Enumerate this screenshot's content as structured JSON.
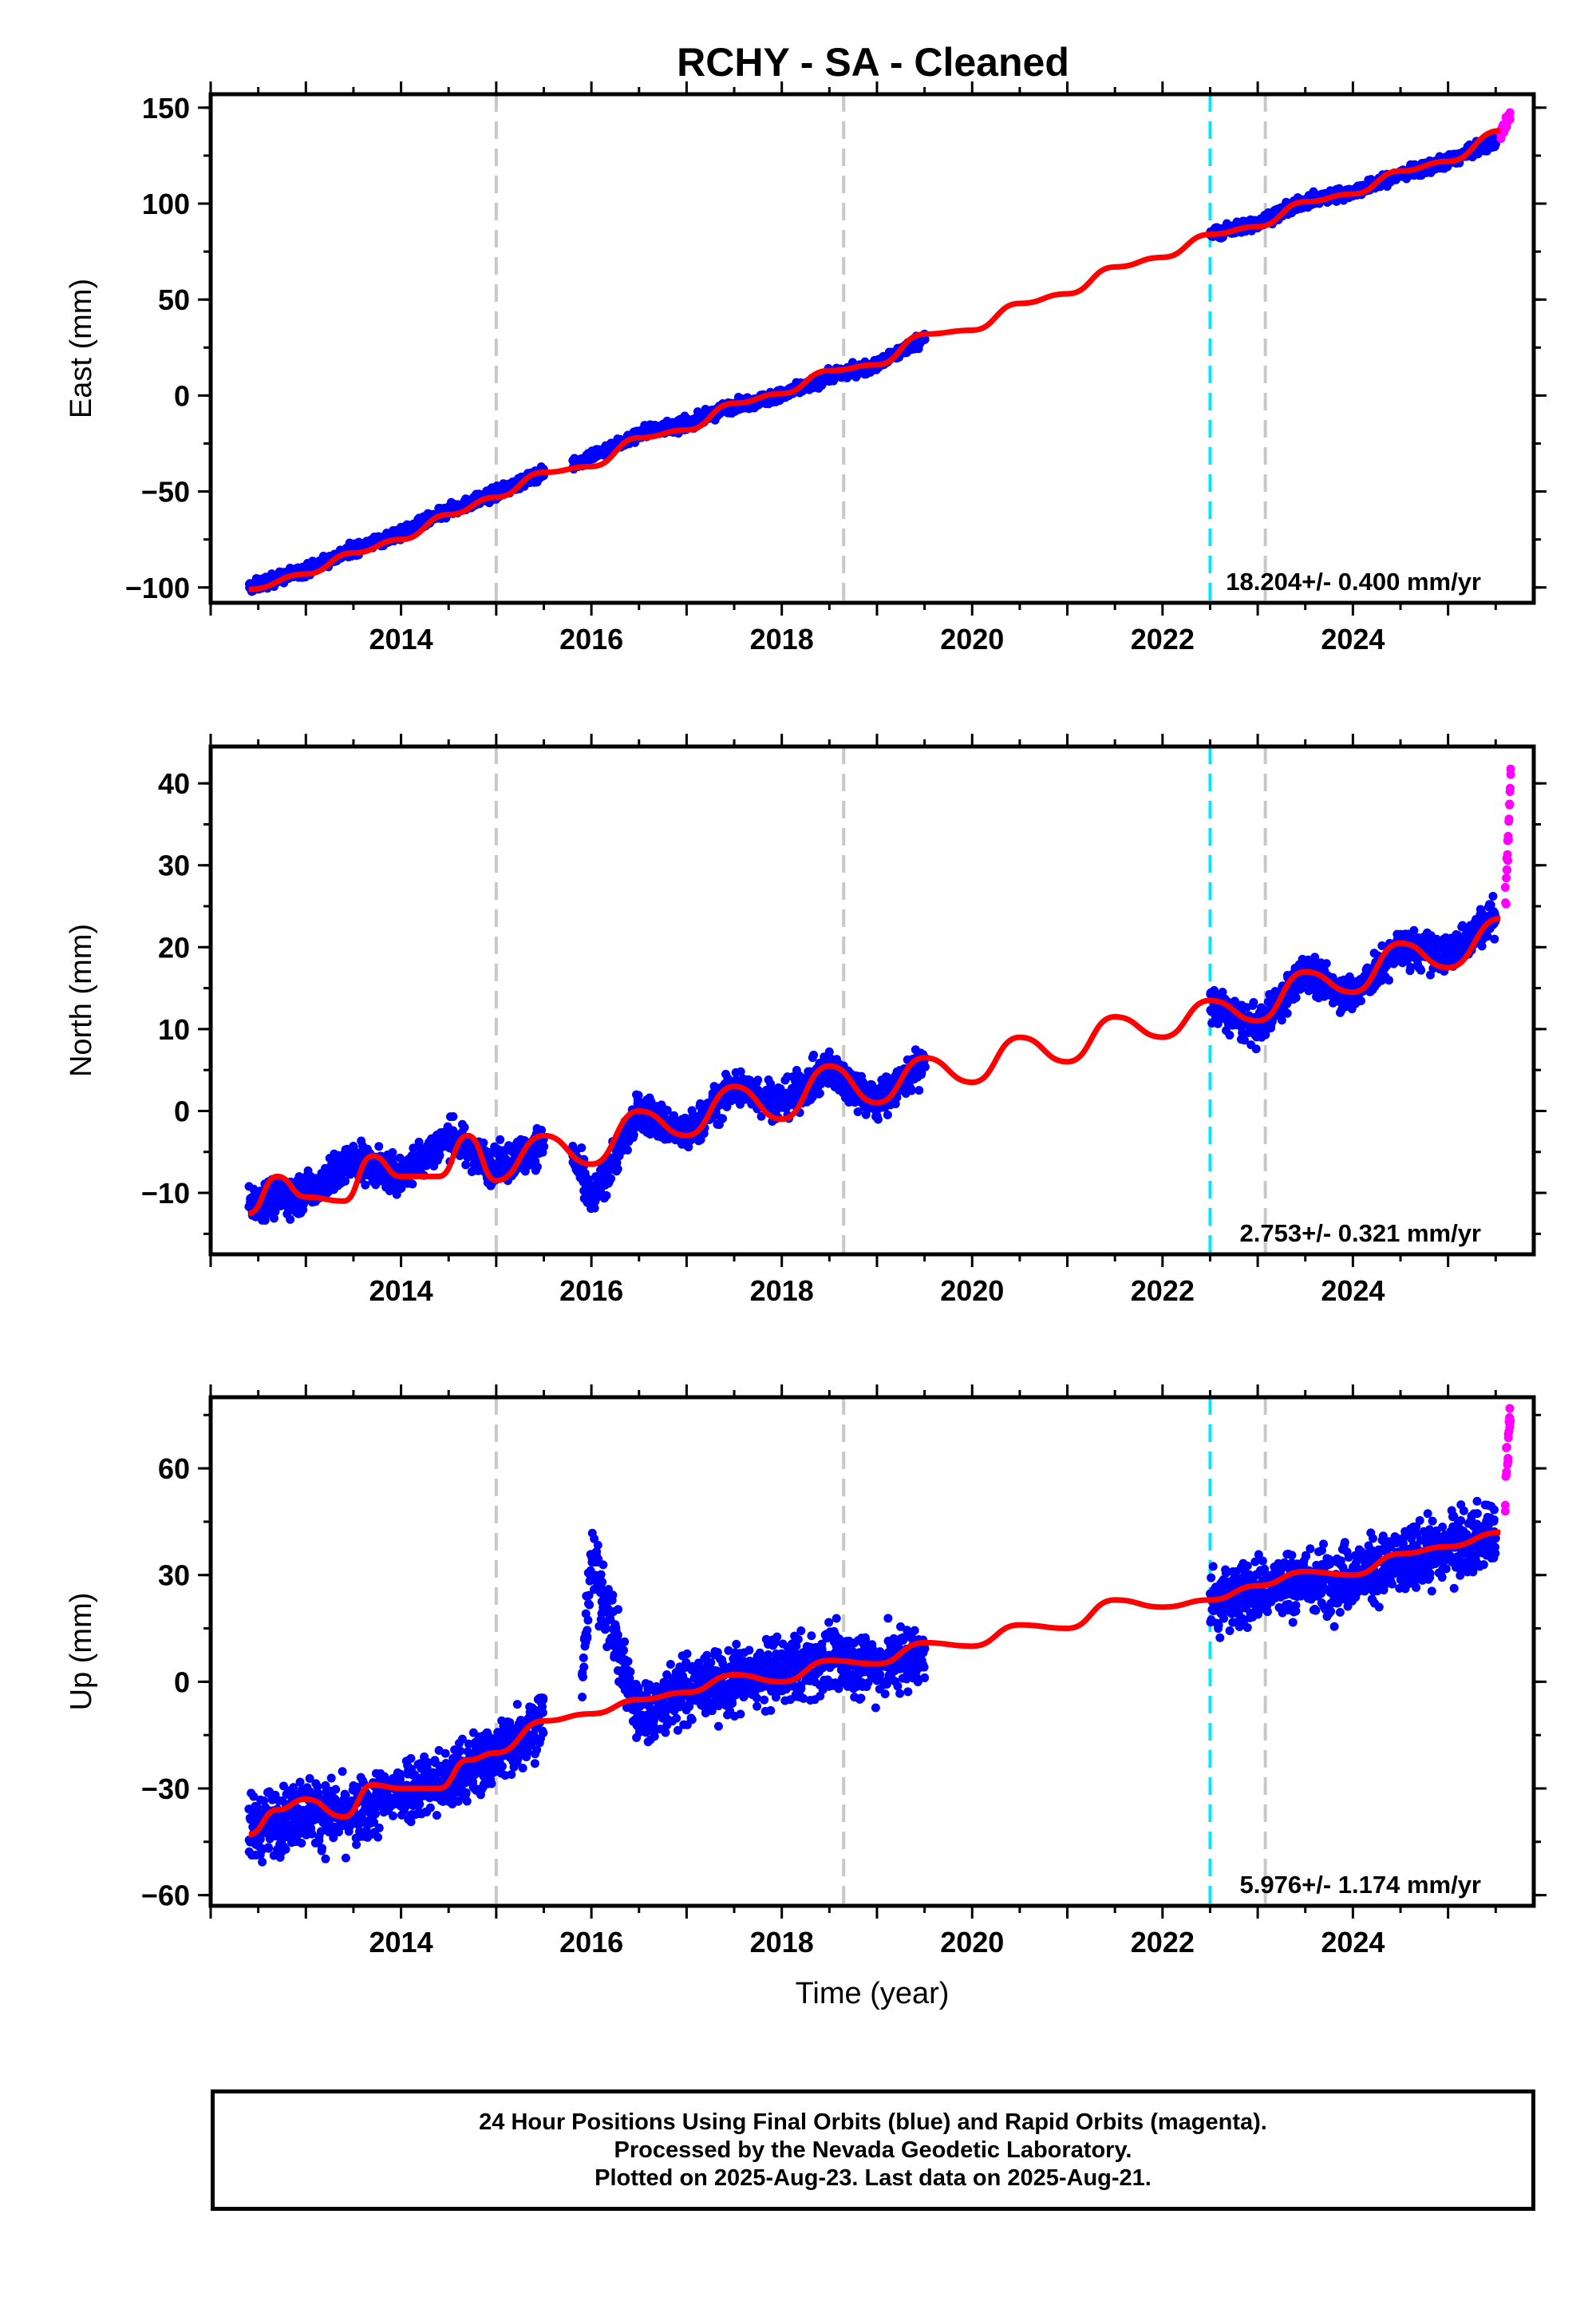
{
  "figure": {
    "title": "RCHY  - SA - Cleaned"
  },
  "chart_data": [
    {
      "type": "scatter",
      "panel": "east",
      "ylabel": "East (mm)",
      "xlabel": "",
      "xlim": [
        2012.0,
        2025.9
      ],
      "ylim": [
        -108,
        157
      ],
      "xticks": [
        2014,
        2016,
        2018,
        2020,
        2022,
        2024
      ],
      "yticks": [
        -100,
        -50,
        0,
        50,
        100,
        150
      ],
      "rate_label": "18.204+/- 0.400 mm/yr",
      "grid": false,
      "series": [
        {
          "role": "final orbits",
          "color": "#0000ff",
          "segments": [
            {
              "x": [
                2012.4,
                2013.0,
                2013.5,
                2014.0,
                2014.5,
                2015.0,
                2015.5
              ],
              "y": [
                -100,
                -91,
                -80,
                -72,
                -60,
                -51,
                -40
              ]
            },
            {
              "x": [
                2015.8,
                2016.3,
                2016.6,
                2017.0,
                2017.5,
                2018.0,
                2018.5,
                2019.0,
                2019.5
              ],
              "y": [
                -36,
                -25,
                -18,
                -15,
                -5,
                0,
                10,
                16,
                30
              ]
            },
            {
              "x": [
                2022.5,
                2023.0,
                2023.5,
                2024.0,
                2024.5,
                2025.0,
                2025.5
              ],
              "y": [
                84,
                90,
                101,
                106,
                115,
                122,
                132
              ]
            }
          ]
        },
        {
          "role": "rapid orbits",
          "color": "#ff00ff",
          "segments": [
            {
              "x": [
                2025.55,
                2025.65
              ],
              "y": [
                136,
                146
              ]
            }
          ]
        },
        {
          "role": "model",
          "color": "#ff0000",
          "x": [
            2012.4,
            2013.0,
            2013.5,
            2014.0,
            2014.5,
            2015.0,
            2015.5,
            2016.0,
            2016.5,
            2017.0,
            2017.5,
            2018.0,
            2018.5,
            2019.0,
            2019.5,
            2020.0,
            2020.5,
            2021.0,
            2021.5,
            2022.0,
            2022.5,
            2023.0,
            2023.5,
            2024.0,
            2024.5,
            2025.0,
            2025.55
          ],
          "y": [
            -101,
            -93,
            -82,
            -75,
            -62,
            -53,
            -40,
            -37,
            -22,
            -18,
            -4,
            1,
            13,
            16,
            32,
            34,
            48,
            53,
            67,
            72,
            84,
            88,
            101,
            105,
            117,
            122,
            138
          ]
        }
      ]
    },
    {
      "type": "scatter",
      "panel": "north",
      "ylabel": "North (mm)",
      "xlabel": "",
      "xlim": [
        2012.0,
        2025.9
      ],
      "ylim": [
        -17.5,
        44.5
      ],
      "xticks": [
        2014,
        2016,
        2018,
        2020,
        2022,
        2024
      ],
      "yticks": [
        -10,
        0,
        10,
        20,
        30,
        40
      ],
      "rate_label": "2.753+/- 0.321 mm/yr",
      "grid": false,
      "series": [
        {
          "role": "final orbits",
          "color": "#0000ff",
          "segments": [
            {
              "x": [
                2012.4,
                2013.0,
                2013.5,
                2014.0,
                2014.5,
                2015.0,
                2015.5
              ],
              "y": [
                -11,
                -10,
                -6,
                -8,
                -3,
                -7,
                -4
              ]
            },
            {
              "x": [
                2015.8,
                2016.0,
                2016.5,
                2017.0,
                2017.5,
                2018.0,
                2018.5,
                2019.0,
                2019.5
              ],
              "y": [
                -5,
                -11,
                0,
                -3,
                3,
                1,
                5,
                1,
                6
              ]
            },
            {
              "x": [
                2022.5,
                2023.0,
                2023.5,
                2024.0,
                2024.5,
                2025.0,
                2025.5
              ],
              "y": [
                13,
                10,
                17,
                14,
                20,
                19,
                24
              ]
            }
          ]
        },
        {
          "role": "rapid orbits",
          "color": "#ff00ff",
          "segments": [
            {
              "x": [
                2025.6,
                2025.62,
                2025.64,
                2025.66
              ],
              "y": [
                26,
                30,
                36,
                43
              ]
            }
          ]
        },
        {
          "role": "model",
          "color": "#ff0000",
          "x": [
            2012.4,
            2012.7,
            2013.0,
            2013.4,
            2013.7,
            2014.0,
            2014.4,
            2014.7,
            2015.0,
            2015.5,
            2016.0,
            2016.5,
            2017.0,
            2017.5,
            2018.0,
            2018.5,
            2019.0,
            2019.5,
            2020.0,
            2020.5,
            2021.0,
            2021.5,
            2022.0,
            2022.5,
            2023.0,
            2023.5,
            2024.0,
            2024.5,
            2025.0,
            2025.55
          ],
          "y": [
            -12.5,
            -8,
            -10.5,
            -11,
            -5.5,
            -8,
            -8,
            -3,
            -8.5,
            -3,
            -6.5,
            0,
            -3,
            3,
            -1,
            5.5,
            1,
            6.5,
            3.5,
            9,
            6,
            11.5,
            9,
            13.5,
            11,
            17,
            14.5,
            20.5,
            17.5,
            23.5
          ]
        }
      ]
    },
    {
      "type": "scatter",
      "panel": "up",
      "ylabel": "Up (mm)",
      "xlabel": "Time (year)",
      "xlim": [
        2012.0,
        2025.9
      ],
      "ylim": [
        -63,
        80
      ],
      "xticks": [
        2014,
        2016,
        2018,
        2020,
        2022,
        2024
      ],
      "yticks": [
        -60,
        -30,
        0,
        30,
        60
      ],
      "rate_label": "5.976+/- 1.174 mm/yr",
      "grid": false,
      "series": [
        {
          "role": "final orbits",
          "color": "#0000ff",
          "segments": [
            {
              "x": [
                2012.4,
                2013.0,
                2013.5,
                2014.0,
                2014.5,
                2015.0,
                2015.5
              ],
              "y": [
                -42,
                -36,
                -38,
                -30,
                -28,
                -20,
                -10
              ]
            },
            {
              "x": [
                2015.9,
                2016.0,
                2016.5,
                2017.0,
                2017.5,
                2018.0,
                2018.5,
                2019.0,
                2019.5
              ],
              "y": [
                -2,
                35,
                -10,
                -2,
                0,
                3,
                6,
                5,
                8
              ]
            },
            {
              "x": [
                2022.5,
                2023.0,
                2023.5,
                2024.0,
                2024.5,
                2025.0,
                2025.5
              ],
              "y": [
                22,
                26,
                28,
                30,
                33,
                38,
                42
              ]
            }
          ]
        },
        {
          "role": "rapid orbits",
          "color": "#ff00ff",
          "segments": [
            {
              "x": [
                2025.6,
                2025.62,
                2025.64,
                2025.66
              ],
              "y": [
                50,
                60,
                70,
                78
              ]
            }
          ]
        },
        {
          "role": "model",
          "color": "#ff0000",
          "x": [
            2012.4,
            2012.7,
            2013.0,
            2013.4,
            2013.7,
            2014.0,
            2014.4,
            2014.7,
            2015.0,
            2015.5,
            2016.0,
            2016.5,
            2017.0,
            2017.5,
            2018.0,
            2018.5,
            2019.0,
            2019.5,
            2020.0,
            2020.5,
            2021.0,
            2021.5,
            2022.0,
            2022.5,
            2023.0,
            2023.5,
            2024.0,
            2024.5,
            2025.0,
            2025.55
          ],
          "y": [
            -43,
            -36,
            -33,
            -38,
            -29,
            -30,
            -30,
            -22,
            -20,
            -11,
            -9,
            -5,
            -3,
            2,
            0,
            6,
            5,
            11,
            10,
            16,
            15,
            23,
            21,
            23,
            27,
            31,
            30,
            36,
            38,
            42
          ]
        }
      ]
    }
  ],
  "vertical_lines": [
    {
      "x": 2015.0,
      "color": "#c8c8c8",
      "style": "gray dashed"
    },
    {
      "x": 2018.65,
      "color": "#c8c8c8",
      "style": "gray dashed"
    },
    {
      "x": 2022.5,
      "color": "#00e6ff",
      "style": "cyan dashed"
    },
    {
      "x": 2023.08,
      "color": "#c8c8c8",
      "style": "gray dashed"
    }
  ],
  "footer": {
    "line1": "24 Hour Positions Using Final Orbits (blue) and Rapid Orbits (magenta).",
    "line2": "Processed by the Nevada Geodetic Laboratory.",
    "line3": "Plotted on 2025-Aug-23. Last data on 2025-Aug-21."
  }
}
